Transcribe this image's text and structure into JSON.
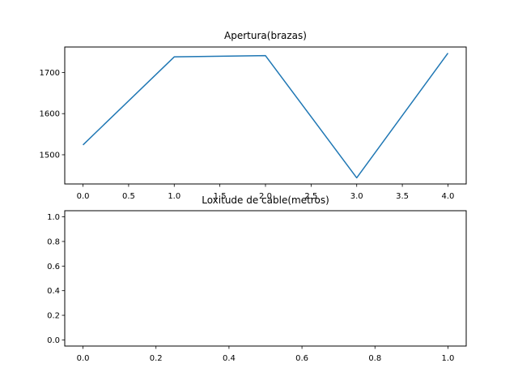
{
  "chart_data": [
    {
      "type": "line",
      "title": "Apertura(brazas)",
      "xlabel": "",
      "ylabel": "",
      "x": [
        0,
        1,
        2,
        3,
        4
      ],
      "series": [
        {
          "values": [
            1524,
            1738,
            1741,
            1444,
            1747
          ],
          "color": "#1f77b4"
        }
      ],
      "xlim": [
        -0.2,
        4.2
      ],
      "ylim": [
        1429,
        1762
      ],
      "xticks": [
        "0.0",
        "0.5",
        "1.0",
        "1.5",
        "2.0",
        "2.5",
        "3.0",
        "3.5",
        "4.0"
      ],
      "xtick_values": [
        0,
        0.5,
        1,
        1.5,
        2,
        2.5,
        3,
        3.5,
        4
      ],
      "yticks": [
        "1500",
        "1600",
        "1700"
      ],
      "ytick_values": [
        1500,
        1600,
        1700
      ],
      "grid": false
    },
    {
      "type": "line",
      "title": "Loxitude de cable(metros)",
      "xlabel": "",
      "ylabel": "",
      "x": [],
      "series": [],
      "xlim": [
        -0.05,
        1.05
      ],
      "ylim": [
        -0.05,
        1.05
      ],
      "xticks": [
        "0.0",
        "0.2",
        "0.4",
        "0.6",
        "0.8",
        "1.0"
      ],
      "xtick_values": [
        0,
        0.2,
        0.4,
        0.6,
        0.8,
        1.0
      ],
      "yticks": [
        "0.0",
        "0.2",
        "0.4",
        "0.6",
        "0.8",
        "1.0"
      ],
      "ytick_values": [
        0,
        0.2,
        0.4,
        0.6,
        0.8,
        1.0
      ],
      "grid": false
    }
  ]
}
